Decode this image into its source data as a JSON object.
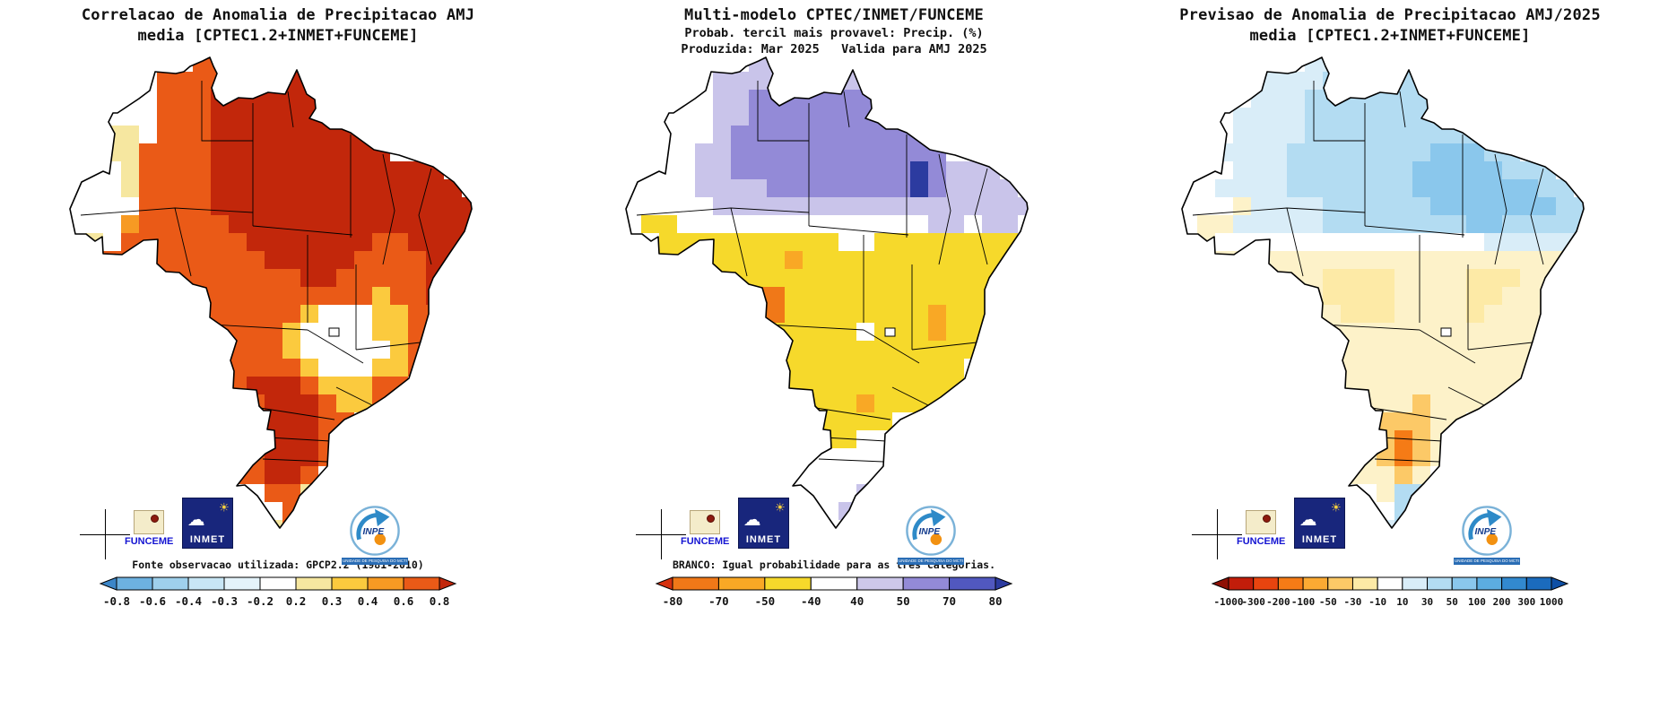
{
  "logos": {
    "funceme": {
      "label": "FUNCEME"
    },
    "inmet": {
      "label": "INMET"
    },
    "inpe": {
      "label": "INPE",
      "subtitle": "UNIDADE DE PESQUISA DO MCTI"
    }
  },
  "chart_data": [
    {
      "type": "heatmap",
      "region": "Brazil",
      "title_line1": "Correlacao de Anomalia de Precipitacao AMJ",
      "title_line2": "media [CPTEC1.2+INMET+FUNCEME]",
      "caption": "Fonte observacao utilizada: GPCP2.2 (1981-2010)",
      "legend_position": "bottom",
      "colorbar": {
        "ticks": [
          "-0.8",
          "-0.6",
          "-0.4",
          "-0.3",
          "-0.2",
          "0.2",
          "0.3",
          "0.4",
          "0.6",
          "0.8"
        ],
        "colors": [
          "#3c86c8",
          "#6db1e0",
          "#9fd0ec",
          "#c8e6f5",
          "#e4f3fa",
          "#ffffff",
          "#f6e7a0",
          "#fbca3e",
          "#f79a23",
          "#ea5a17",
          "#c2270b"
        ]
      },
      "map": {
        "palette": {
          "W": "#ffffff",
          "y": "#f6e7a0",
          "Y": "#fbca3e",
          "o": "#f79a23",
          "O": "#ea5a17",
          "R": "#c2270b"
        },
        "grid": [
          ".......OO...RR.........",
          "....WOOOORRRRR.........",
          "..WWWOOORRRRRRR........",
          "..WWWOOORRRRRRRR.......",
          "..yyWOOORRRRRRRRR......",
          "..yyOOOORRRRRRRRRR.....",
          "..WyOOOORRRRRRRRRRRRR..",
          "WWWyOOOORRRRRRRRRRRRRR.",
          "WWWWOOOORRRRRRRRRRRRRRR",
          "WWWoOOOOORRRRRRRRRRRRRR",
          "WyWOOOOOOORRRRRRROORRRR",
          "..OOOOOOOOORRRRROOOORRR",
          ".....OOOOOOOORROOOOORR.",
          ".....OOOOOOOOOOOOYOORR.",
          ".......OOOOOOYWWWYYOO..",
          "........OOOOYWWWWYYOO..",
          ".........OOOYWWWWWYOO..",
          ".........OOOOYWWWYYO...",
          ".........ORRROYYYOO....",
          "..........ORRROYYOO....",
          "..........RRRROO.......",
          "...........RRRO........",
          "..........ORRRO........",
          ".........OORRO.........",
          "...........OOy.........",
          "............Oy.........",
          "...........yO.........."
        ]
      }
    },
    {
      "type": "heatmap",
      "region": "Brazil",
      "title_line1": "Multi-modelo CPTEC/INMET/FUNCEME",
      "title_line2": "Probab. tercil mais provavel: Precip. (%)",
      "title_line3": "Produzida: Mar 2025   Valida para AMJ 2025",
      "caption": "BRANCO: Igual probabilidade para as tres categorias.",
      "legend_position": "bottom",
      "colorbar": {
        "ticks": [
          "-80",
          "-70",
          "-50",
          "-40",
          "40",
          "50",
          "70",
          "80"
        ],
        "colors": [
          "#d5310f",
          "#f07818",
          "#f9a825",
          "#f6d92b",
          "#ffffff",
          "#cdc8ea",
          "#938ad7",
          "#5158bf",
          "#2c3ba0"
        ]
      },
      "map": {
        "palette": {
          "W": "#ffffff",
          "l": "#c9c4ea",
          "P": "#938ad7",
          "B": "#5158bf",
          "D": "#2c3ba0",
          "Y": "#f6d92b",
          "o": "#f9a825",
          "O": "#f07818"
        },
        "grid": [
          ".......ll...ll.........",
          "....Wlllllllll.........",
          "..WWWllPPPPPPPP........",
          "..WWWllPPPPPPPPP.......",
          "..WWWlPPPPPPPPPPP......",
          "..WWllPPPPPPPPPPPP.....",
          "..WWllPPPPPPPPPPDPlll..",
          "WWWWllllPPPPPPPPDPllll.",
          "WWWWWllllllllllllllllll",
          "WYYWWWWWWWWWWWWWWllWllW",
          "..YYYYYYYYYYWWYYYYYYYY.",
          "..YYYYYYYoYYYYYYYYYYYY.",
          ".....YYYYYYYYYYYYYYYYY.",
          ".....YYOOYYYYYYYYYYYYY.",
          ".......OOYYYYYYYYoYYY..",
          "........YYYYYWYYYoYY...",
          ".........YYYYYYYYYYY...",
          ".........YYYYYYYYYY....",
          ".........YYYYYYYYYY....",
          "..........YYYoYYYY.....",
          "..........YYYYYW.......",
          "...........YYWW........",
          "..........WWWWW........",
          ".........WWWWW.........",
          "...........WWl.........",
          "............lW.........",
          "...........WW.........."
        ]
      }
    },
    {
      "type": "heatmap",
      "region": "Brazil",
      "title_line1": "Previsao de Anomalia de Precipitacao AMJ/2025",
      "title_line2": "media [CPTEC1.2+INMET+FUNCEME]",
      "legend_position": "bottom",
      "colorbar": {
        "ticks": [
          "-1000",
          "-300",
          "-200",
          "-100",
          "-50",
          "-30",
          "-10",
          "10",
          "30",
          "50",
          "100",
          "200",
          "300",
          "1000"
        ],
        "colors": [
          "#8f1005",
          "#c21d0a",
          "#e8440f",
          "#f57b16",
          "#fbaa33",
          "#fcc967",
          "#fdeaa6",
          "#ffffff",
          "#d9edf8",
          "#b3dcf2",
          "#8ac7ec",
          "#5cade0",
          "#3289cf",
          "#1b6bbd",
          "#0d4fa5"
        ]
      },
      "map": {
        "palette": {
          "W": "#ffffff",
          "c": "#d9edf8",
          "C": "#b3dcf2",
          "B": "#8ac7ec",
          "y": "#fdf2c9",
          "Y": "#fdeaa6",
          "G": "#fcc967",
          "O": "#f57b16"
        },
        "grid": [
          ".......cc...CC.........",
          "....ccccCCCCCC.........",
          "..WWcccCCCCCCCC........",
          "..WccccCCCCCCCCC.......",
          "..WccccCCCCCCCCCC......",
          "..ccccCCCCCCCCBBBCC....",
          "..WcccCCCCCCCBBBBBCCC..",
          "WWccccCCCCCCCBBBBBBBCC.",
          "WWWyccccCCCCCCBBBBBBBCC",
          "WyycccccCCCCCCCCBBCCCCC",
          "WyWWWWWWWWWWWWWWWccccc.",
          "..yyyyyyyyyyyyyyyyyyyy.",
          ".....yyyYYYYyyyyYYYyyy.",
          ".....yyyYYYYyyyyYYyyyy.",
          ".......yyYYYyyyyYyyyy..",
          "........yyyyyyyyyyyyy..",
          ".........yyyyyyyyyyyy..",
          ".........yyyyyyyyyyy...",
          ".........yyyyyyyyyy....",
          "..........yyyGyyyy.....",
          "..........yGGGyy.......",
          "...........GOGy........",
          "..........yGOGy........",
          ".........yyyGy.........",
          "...........yCC.........",
          "............CC.........",
          "...........cC.........."
        ]
      }
    }
  ]
}
